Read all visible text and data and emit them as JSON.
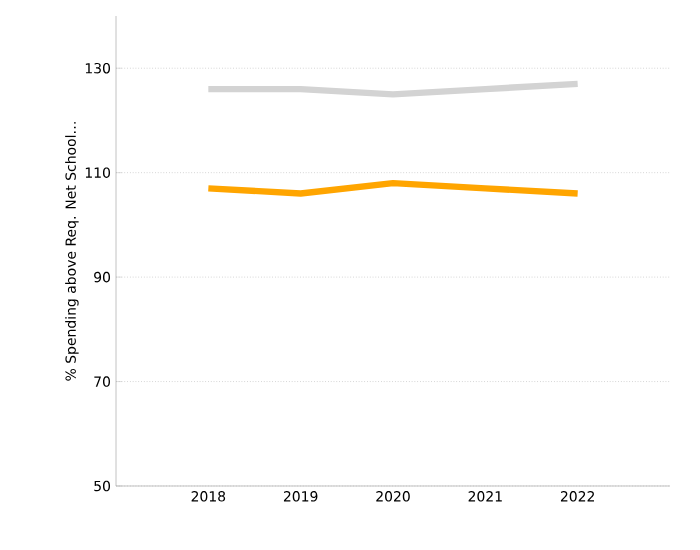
{
  "chart_data": {
    "type": "line",
    "ylabel": "% Spending above Req. Net School…",
    "categories": [
      "2018",
      "2019",
      "2020",
      "2021",
      "2022"
    ],
    "series": [
      {
        "color": "#d3d3d3",
        "values": [
          126,
          126,
          125,
          126,
          127
        ]
      },
      {
        "color": "#ffa500",
        "values": [
          107,
          106,
          108,
          107,
          106
        ]
      }
    ],
    "ylim": [
      50,
      140
    ],
    "yticks": [
      50,
      70,
      90,
      110,
      130
    ],
    "grid": "y",
    "marker": "none",
    "line_style": "solid"
  }
}
